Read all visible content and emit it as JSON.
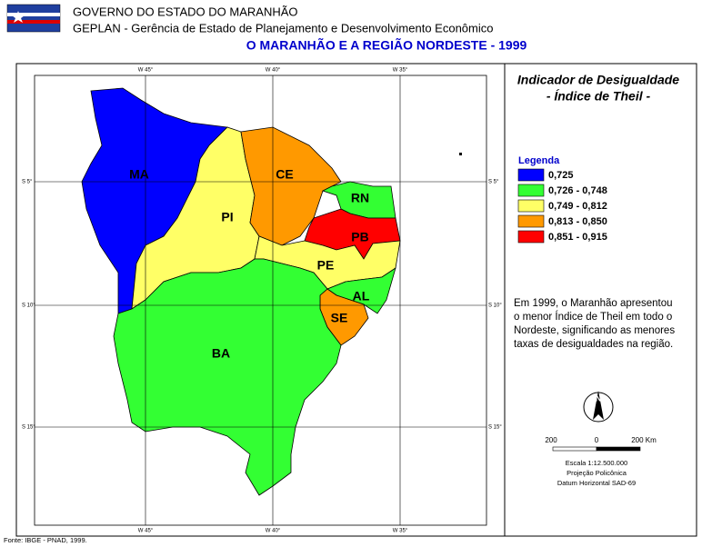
{
  "header": {
    "org": "GOVERNO DO ESTADO DO MARANHÃO",
    "dept": "GEPLAN - Gerência de Estado de Planejamento e Desenvolvimento Econômico",
    "title": "O MARANHÃO E A REGIÃO NORDESTE - 1999"
  },
  "map": {
    "lon_ticks": [
      "W 45°",
      "W 40°",
      "W 35°"
    ],
    "lat_ticks": [
      "S 5°",
      "S 10°",
      "S 15°"
    ],
    "states": [
      {
        "label": "MA",
        "color": "#0000ff"
      },
      {
        "label": "PI",
        "color": "#ffff66"
      },
      {
        "label": "CE",
        "color": "#ff9900"
      },
      {
        "label": "RN",
        "color": "#33ff33"
      },
      {
        "label": "PB",
        "color": "#ff0000"
      },
      {
        "label": "PE",
        "color": "#ffff66"
      },
      {
        "label": "AL",
        "color": "#33ff33"
      },
      {
        "label": "SE",
        "color": "#ff9900"
      },
      {
        "label": "BA",
        "color": "#33ff33"
      }
    ]
  },
  "panel": {
    "title": "Indicador de Desigualdade",
    "subtitle": "- Índice de Theil -",
    "legend_title": "Legenda",
    "legend": [
      {
        "label": "0,725",
        "color": "#0000ff"
      },
      {
        "label": "0,726 - 0,748",
        "color": "#33ff33"
      },
      {
        "label": "0,749 - 0,812",
        "color": "#ffff66"
      },
      {
        "label": "0,813 - 0,850",
        "color": "#ff9900"
      },
      {
        "label": "0,851 - 0,915",
        "color": "#ff0000"
      }
    ],
    "note": [
      "Em 1999, o Maranhão apresentou",
      "o menor Índice de Theil em todo o",
      "Nordeste, significando as menores",
      "taxas de desigualdades na região."
    ],
    "north": "N",
    "scale_labels": [
      "200",
      "0",
      "200 Km"
    ],
    "scale": "Escala 1:12.500.000",
    "projection": "Projeção Policônica",
    "datum": "Datum Horizontal SAD-69"
  },
  "footer": "Fonte: IBGE - PNAD, 1999."
}
